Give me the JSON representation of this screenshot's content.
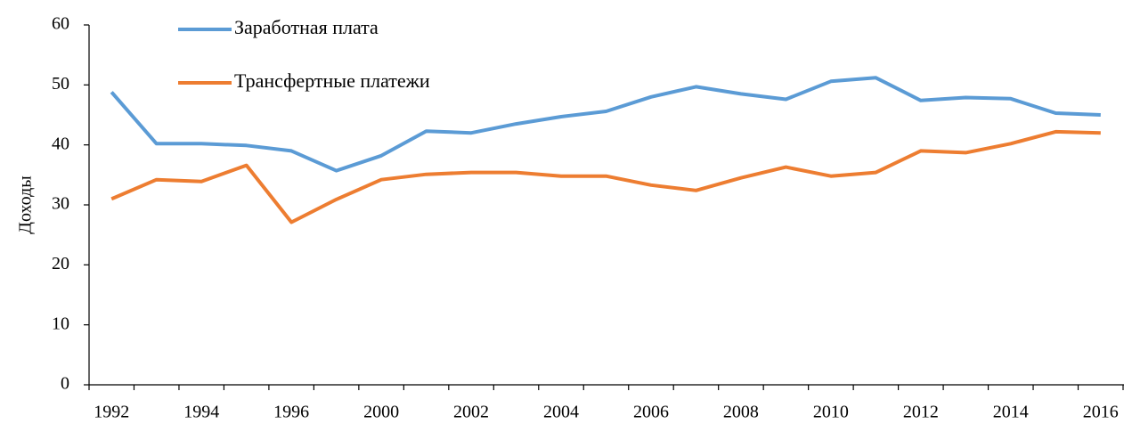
{
  "chart_data": {
    "type": "line",
    "y_label": "Доходы",
    "categories": [
      "1992",
      null,
      "1994",
      null,
      "1996",
      null,
      "2000",
      null,
      "2002",
      null,
      "2004",
      null,
      "2006",
      null,
      "2008",
      null,
      "2010",
      null,
      "2012",
      null,
      "2014",
      null,
      "2016"
    ],
    "series": [
      {
        "name": "Заработная плата",
        "color": "#5b9bd5",
        "values": [
          48.8,
          40.2,
          40.2,
          39.9,
          39.0,
          35.7,
          38.2,
          42.3,
          42.0,
          43.5,
          44.7,
          45.6,
          48.0,
          49.7,
          48.5,
          47.6,
          50.6,
          51.2,
          47.4,
          47.9,
          47.7,
          45.3,
          45.0
        ]
      },
      {
        "name": "Трансфертные платежи",
        "color": "#ed7d31",
        "values": [
          31.0,
          34.2,
          33.9,
          36.6,
          27.1,
          30.9,
          34.2,
          35.1,
          35.4,
          35.4,
          34.8,
          34.8,
          33.3,
          32.4,
          34.5,
          36.3,
          34.8,
          35.4,
          39.0,
          38.7,
          40.2,
          42.2,
          42.0
        ]
      }
    ],
    "ylim": [
      0,
      60
    ],
    "yticks": [
      0,
      10,
      20,
      30,
      40,
      50,
      60
    ],
    "grid": false,
    "legend": "top-left"
  }
}
